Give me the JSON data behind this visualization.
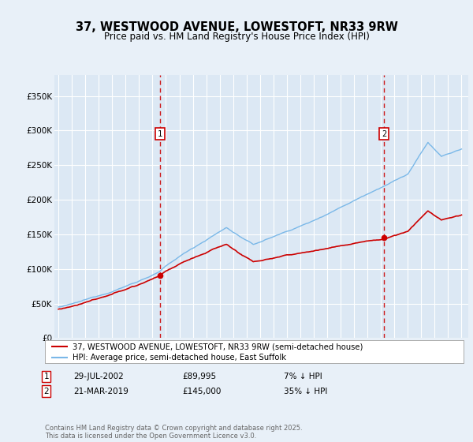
{
  "title": "37, WESTWOOD AVENUE, LOWESTOFT, NR33 9RW",
  "subtitle": "Price paid vs. HM Land Registry's House Price Index (HPI)",
  "legend_line1": "37, WESTWOOD AVENUE, LOWESTOFT, NR33 9RW (semi-detached house)",
  "legend_line2": "HPI: Average price, semi-detached house, East Suffolk",
  "marker1_date": "29-JUL-2002",
  "marker1_price": "£89,995",
  "marker1_hpi": "7% ↓ HPI",
  "marker1_year": 2002.57,
  "marker1_value": 89995,
  "marker2_date": "21-MAR-2019",
  "marker2_price": "£145,000",
  "marker2_hpi": "35% ↓ HPI",
  "marker2_year": 2019.22,
  "marker2_value": 145000,
  "ylim": [
    0,
    380000
  ],
  "yticks": [
    0,
    50000,
    100000,
    150000,
    200000,
    250000,
    300000,
    350000
  ],
  "background_color": "#e8f0f8",
  "plot_bg_color": "#dce8f4",
  "grid_color": "#ffffff",
  "hpi_line_color": "#7ab8e8",
  "price_line_color": "#cc0000",
  "marker_color": "#cc0000",
  "footnote": "Contains HM Land Registry data © Crown copyright and database right 2025.\nThis data is licensed under the Open Government Licence v3.0.",
  "start_year": 1995,
  "end_year": 2025
}
